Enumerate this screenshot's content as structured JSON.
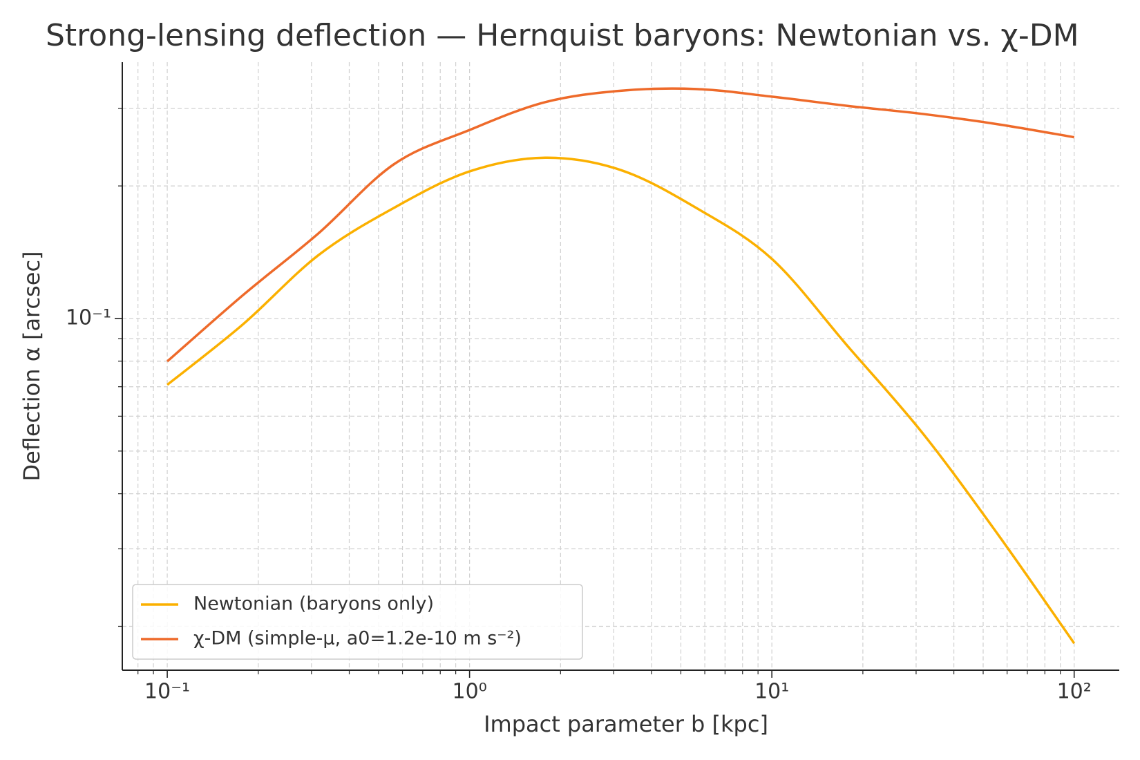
{
  "chart_data": {
    "type": "line",
    "title": "Strong-lensing deflection — Hernquist baryons: Newtonian vs. χ-DM",
    "xlabel": "Impact parameter b [kpc]",
    "ylabel": "Deflection α [arcsec]",
    "xscale": "log",
    "yscale": "log",
    "grid": true,
    "legend": "lower left",
    "x": [
      0.1,
      0.178,
      0.316,
      0.562,
      1,
      1.78,
      3.16,
      5.62,
      10,
      17.8,
      31.6,
      56.2,
      100
    ],
    "series": [
      {
        "name": "Newtonian (baryons only)",
        "color": "#fbb000",
        "values": [
          0.0707,
          0.097,
          0.1392,
          0.1783,
          0.2158,
          0.2318,
          0.2174,
          0.1783,
          0.1366,
          0.0866,
          0.0548,
          0.0322,
          0.0183
        ]
      },
      {
        "name": "χ-DM (simple-μ, a0=1.2e-10 m s⁻²)",
        "color": "#ee6a2a",
        "values": [
          0.0799,
          0.113,
          0.156,
          0.224,
          0.268,
          0.31,
          0.329,
          0.332,
          0.319,
          0.304,
          0.2914,
          0.276,
          0.258
        ]
      }
    ],
    "xlim": [
      0.071,
      141
    ],
    "ylim": [
      0.0159,
      0.382
    ],
    "xticks": [
      {
        "value": 0.1,
        "label": "10⁻¹"
      },
      {
        "value": 1,
        "label": "10⁰"
      },
      {
        "value": 10,
        "label": "10¹"
      },
      {
        "value": 100,
        "label": "10²"
      }
    ],
    "xminorticks": [
      0.08,
      0.09,
      0.2,
      0.3,
      0.4,
      0.5,
      0.6,
      0.7,
      0.8,
      0.9,
      2,
      3,
      4,
      5,
      6,
      7,
      8,
      9,
      20,
      30,
      40,
      50,
      60,
      70,
      80,
      90
    ],
    "yticks": [
      {
        "value": 0.1,
        "label": "10⁻¹"
      }
    ],
    "yminorticks": [
      0.02,
      0.03,
      0.04,
      0.05,
      0.06,
      0.07,
      0.08,
      0.09,
      0.2,
      0.3
    ]
  }
}
